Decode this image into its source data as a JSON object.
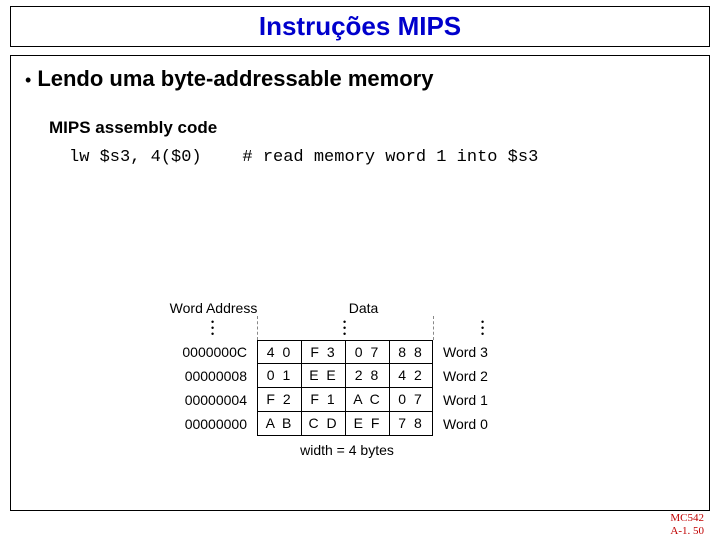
{
  "title": "Instruções MIPS",
  "bullet": "Lendo uma byte-addressable memory",
  "subheading": "MIPS assembly code",
  "code": "lw $s3, 4($0)    # read memory word 1 into $s3",
  "diagram": {
    "addr_header": "Word Address",
    "data_header": "Data",
    "rows": [
      {
        "addr": "0000000C",
        "bytes": [
          "4 0",
          "F 3",
          "0 7",
          "8 8"
        ],
        "label": "Word 3"
      },
      {
        "addr": "00000008",
        "bytes": [
          "0 1",
          "E E",
          "2 8",
          "4 2"
        ],
        "label": "Word 2"
      },
      {
        "addr": "00000004",
        "bytes": [
          "F 2",
          "F 1",
          "A C",
          "0 7"
        ],
        "label": "Word 1"
      },
      {
        "addr": "00000000",
        "bytes": [
          "A B",
          "C D",
          "E F",
          "7 8"
        ],
        "label": "Word 0"
      }
    ],
    "caption": "width = 4 bytes"
  },
  "footer_line1": "MC542",
  "footer_line2": "A-1. 50",
  "colors": {
    "title": "#0000cc",
    "text": "#000000",
    "footer": "#c00000",
    "border": "#000000"
  }
}
